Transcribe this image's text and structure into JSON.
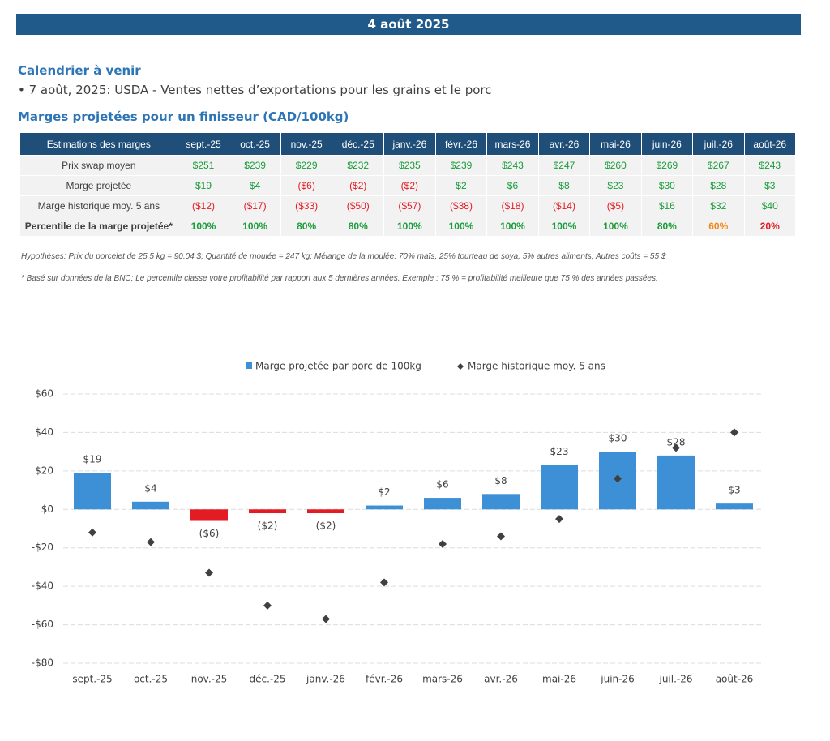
{
  "header": {
    "date": "4 août 2025"
  },
  "calendar": {
    "title": "Calendrier à venir",
    "items": [
      "• 7 août, 2025: USDA - Ventes nettes d’exportations pour les grains et le porc"
    ]
  },
  "table": {
    "title": "Marges projetées pour un finisseur (CAD/100kg)",
    "header": [
      "Estimations des marges",
      "sept.-25",
      "oct.-25",
      "nov.-25",
      "déc.-25",
      "janv.-26",
      "févr.-26",
      "mars-26",
      "avr.-26",
      "mai-26",
      "juin-26",
      "juil.-26",
      "août-26"
    ],
    "rows": [
      {
        "cells": [
          "Prix swap moyen",
          "$251",
          "$239",
          "$229",
          "$232",
          "$235",
          "$239",
          "$243",
          "$247",
          "$260",
          "$269",
          "$267",
          "$243"
        ],
        "colors": [
          "#404040",
          "#1a9c3a",
          "#1a9c3a",
          "#1a9c3a",
          "#1a9c3a",
          "#1a9c3a",
          "#1a9c3a",
          "#1a9c3a",
          "#1a9c3a",
          "#1a9c3a",
          "#1a9c3a",
          "#1a9c3a",
          "#1a9c3a"
        ]
      },
      {
        "cells": [
          "Marge projetée",
          "$19",
          "$4",
          "($6)",
          "($2)",
          "($2)",
          "$2",
          "$6",
          "$8",
          "$23",
          "$30",
          "$28",
          "$3"
        ],
        "colors": [
          "#404040",
          "#1a9c3a",
          "#1a9c3a",
          "#e31b23",
          "#e31b23",
          "#e31b23",
          "#1a9c3a",
          "#1a9c3a",
          "#1a9c3a",
          "#1a9c3a",
          "#1a9c3a",
          "#1a9c3a",
          "#1a9c3a"
        ]
      },
      {
        "cells": [
          "Marge historique moy. 5 ans",
          "($12)",
          "($17)",
          "($33)",
          "($50)",
          "($57)",
          "($38)",
          "($18)",
          "($14)",
          "($5)",
          "$16",
          "$32",
          "$40"
        ],
        "colors": [
          "#404040",
          "#e31b23",
          "#e31b23",
          "#e31b23",
          "#e31b23",
          "#e31b23",
          "#e31b23",
          "#e31b23",
          "#e31b23",
          "#e31b23",
          "#1a9c3a",
          "#1a9c3a",
          "#1a9c3a"
        ]
      },
      {
        "cells": [
          "Percentile de la marge projetée*",
          "100%",
          "100%",
          "80%",
          "80%",
          "100%",
          "100%",
          "100%",
          "100%",
          "100%",
          "80%",
          "60%",
          "20%"
        ],
        "colors": [
          "#404040",
          "#1a9c3a",
          "#1a9c3a",
          "#1a9c3a",
          "#1a9c3a",
          "#1a9c3a",
          "#1a9c3a",
          "#1a9c3a",
          "#1a9c3a",
          "#1a9c3a",
          "#1a9c3a",
          "#f08a1c",
          "#e31b23"
        ]
      }
    ]
  },
  "notes": [
    "Hypothèses: Prix du porcelet de 25.5 kg = 90.04 $; Quantité de moulée = 247 kg; Mélange de la moulée: 70% maïs, 25% tourteau de soya, 5% autres aliments; Autres coûts = 55 $",
    "* Basé sur données de la BNC; Le percentile classe votre profitabilité par rapport aux 5 dernières années. Exemple : 75 % = profitabilité meilleure que 75 % des années passées."
  ],
  "chart_data": {
    "type": "bar",
    "categories": [
      "sept.-25",
      "oct.-25",
      "nov.-25",
      "déc.-25",
      "janv.-26",
      "févr.-26",
      "mars-26",
      "avr.-26",
      "mai-26",
      "juin-26",
      "juil.-26",
      "août-26"
    ],
    "series": [
      {
        "name": "Marge projetée par porc de 100kg",
        "type": "bar",
        "color": "#3d8fd6",
        "negative_color": "#e31b23",
        "values": [
          19,
          4,
          -6,
          -2,
          -2,
          2,
          6,
          8,
          23,
          30,
          28,
          3
        ],
        "value_labels": [
          "$19",
          "$4",
          "($6)",
          "($2)",
          "($2)",
          "$2",
          "$6",
          "$8",
          "$23",
          "$30",
          "$28",
          "$3"
        ]
      },
      {
        "name": "Marge historique moy. 5 ans",
        "type": "scatter",
        "color": "#404040",
        "values": [
          -12,
          -17,
          -33,
          -50,
          -57,
          -38,
          -18,
          -14,
          -5,
          16,
          32,
          40
        ]
      }
    ],
    "ylim": [
      -80,
      60
    ],
    "yticks": [
      {
        "value": -80,
        "label": "-$80"
      },
      {
        "value": -60,
        "label": "-$60"
      },
      {
        "value": -40,
        "label": "-$40"
      },
      {
        "value": -20,
        "label": "-$20"
      },
      {
        "value": 0,
        "label": "$0"
      },
      {
        "value": 20,
        "label": "$20"
      },
      {
        "value": 40,
        "label": "$40"
      },
      {
        "value": 60,
        "label": "$60"
      }
    ],
    "grid": true,
    "legend": "top"
  }
}
